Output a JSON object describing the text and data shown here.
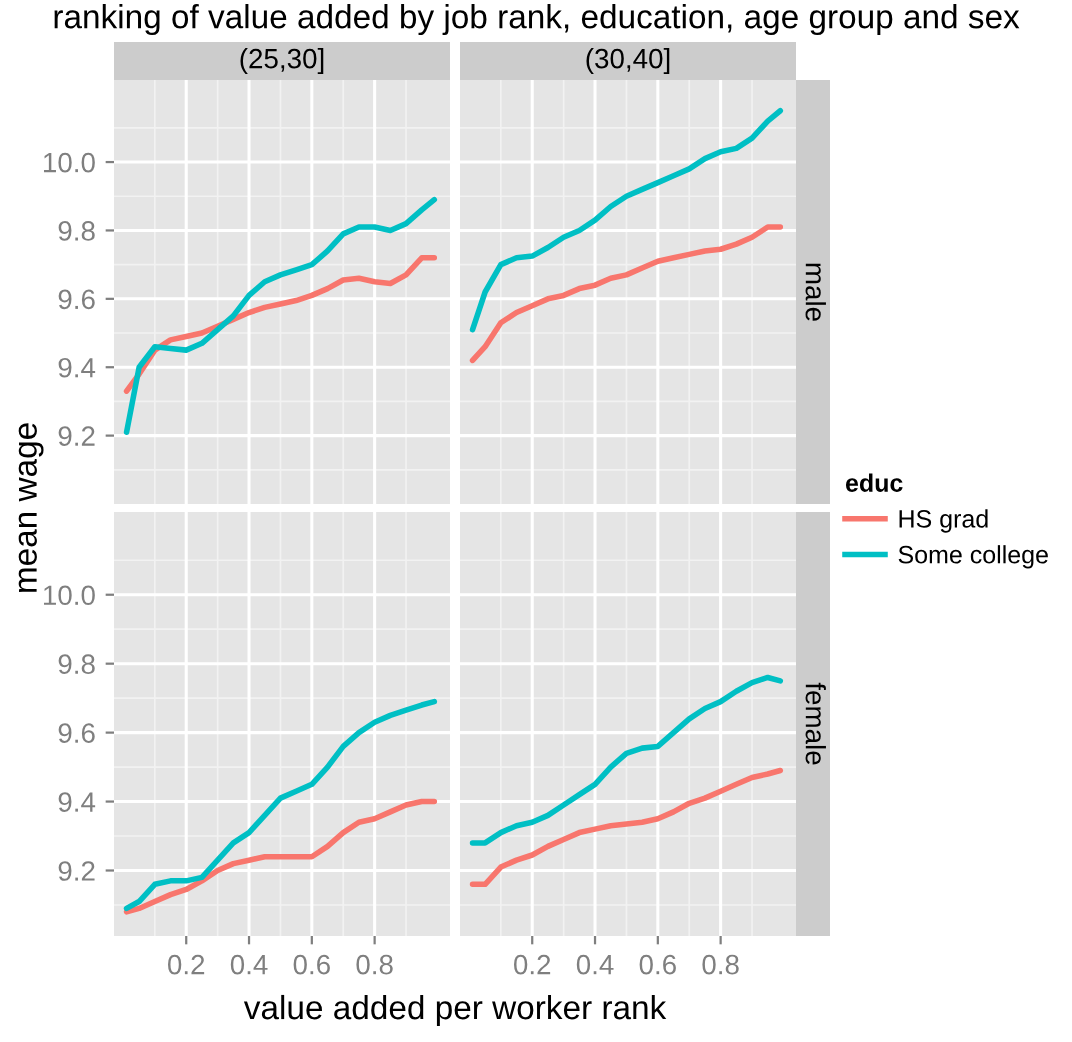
{
  "chart_data": [
    {
      "type": "line",
      "title": "(25,30]",
      "ylabel": "mean wage",
      "annotations": [
        "ranking of value added by job rank, education, age group and sex"
      ],
      "x": [
        0.01,
        0.05,
        0.1,
        0.15,
        0.2,
        0.25,
        0.3,
        0.35,
        0.4,
        0.45,
        0.5,
        0.55,
        0.6,
        0.65,
        0.7,
        0.75,
        0.8,
        0.85,
        0.9,
        0.95,
        0.99
      ],
      "series": [
        {
          "color": "#f8766d",
          "values": [
            9.33,
            9.38,
            9.45,
            9.48,
            9.49,
            9.5,
            9.52,
            9.54,
            9.56,
            9.575,
            9.585,
            9.595,
            9.61,
            9.63,
            9.655,
            9.66,
            9.65,
            9.645,
            9.67,
            9.72,
            9.72
          ]
        },
        {
          "color": "#00bfc4",
          "values": [
            9.21,
            9.4,
            9.46,
            9.455,
            9.45,
            9.47,
            9.51,
            9.55,
            9.61,
            9.65,
            9.67,
            9.685,
            9.7,
            9.74,
            9.79,
            9.81,
            9.81,
            9.8,
            9.82,
            9.86,
            9.89
          ]
        }
      ],
      "xlim": [
        -0.03,
        1.04
      ],
      "ylim": [
        9.0,
        10.24
      ],
      "xticks": [
        0.2,
        0.4,
        0.6,
        0.8
      ],
      "yticks": [
        {
          "value": 9.2,
          "label": "9.2"
        },
        {
          "value": 9.4,
          "label": "9.4"
        },
        {
          "value": 9.6,
          "label": "9.6"
        },
        {
          "value": 9.8,
          "label": "9.8"
        },
        {
          "value": 10.0,
          "label": "10.0"
        }
      ],
      "grid": true,
      "tick_labels": "y"
    },
    {
      "type": "line",
      "title": "(30,40]",
      "y2label": "male",
      "legend": "right",
      "legend_title": "educ",
      "x": [
        0.01,
        0.05,
        0.1,
        0.15,
        0.2,
        0.25,
        0.3,
        0.35,
        0.4,
        0.45,
        0.5,
        0.55,
        0.6,
        0.65,
        0.7,
        0.75,
        0.8,
        0.85,
        0.9,
        0.95,
        0.99
      ],
      "series": [
        {
          "name": "HS grad",
          "color": "#f8766d",
          "values": [
            9.42,
            9.46,
            9.53,
            9.56,
            9.58,
            9.6,
            9.61,
            9.63,
            9.64,
            9.66,
            9.67,
            9.69,
            9.71,
            9.72,
            9.73,
            9.74,
            9.745,
            9.76,
            9.78,
            9.81,
            9.81
          ]
        },
        {
          "name": "Some college",
          "color": "#00bfc4",
          "values": [
            9.51,
            9.62,
            9.7,
            9.72,
            9.725,
            9.75,
            9.78,
            9.8,
            9.83,
            9.87,
            9.9,
            9.92,
            9.94,
            9.96,
            9.98,
            10.01,
            10.03,
            10.04,
            10.07,
            10.12,
            10.15
          ]
        }
      ],
      "xlim": [
        -0.03,
        1.04
      ],
      "ylim": [
        9.0,
        10.24
      ],
      "xticks": [
        0.2,
        0.4,
        0.6,
        0.8
      ],
      "yticks": [
        9.2,
        9.4,
        9.6,
        9.8,
        10.0
      ],
      "grid": true,
      "tick_labels": false
    },
    {
      "type": "line",
      "xlabel": "value added per worker rank",
      "x": [
        0.01,
        0.05,
        0.1,
        0.15,
        0.2,
        0.25,
        0.3,
        0.35,
        0.4,
        0.45,
        0.5,
        0.55,
        0.6,
        0.65,
        0.7,
        0.75,
        0.8,
        0.85,
        0.9,
        0.95,
        0.99
      ],
      "series": [
        {
          "color": "#f8766d",
          "values": [
            9.08,
            9.09,
            9.11,
            9.13,
            9.145,
            9.17,
            9.2,
            9.22,
            9.23,
            9.24,
            9.24,
            9.24,
            9.24,
            9.27,
            9.31,
            9.34,
            9.35,
            9.37,
            9.39,
            9.4,
            9.4
          ]
        },
        {
          "color": "#00bfc4",
          "values": [
            9.09,
            9.11,
            9.16,
            9.17,
            9.17,
            9.18,
            9.23,
            9.28,
            9.31,
            9.36,
            9.41,
            9.43,
            9.45,
            9.5,
            9.56,
            9.6,
            9.63,
            9.65,
            9.665,
            9.68,
            9.69
          ]
        }
      ],
      "xlim": [
        -0.03,
        1.04
      ],
      "ylim": [
        9.01,
        10.24
      ],
      "xticks": [
        0.2,
        0.4,
        0.6,
        0.8
      ],
      "yticks": [
        {
          "value": 9.2,
          "label": "9.2"
        },
        {
          "value": 9.4,
          "label": "9.4"
        },
        {
          "value": 9.6,
          "label": "9.6"
        },
        {
          "value": 9.8,
          "label": "9.8"
        },
        {
          "value": 10.0,
          "label": "10.0"
        }
      ],
      "grid": true
    },
    {
      "type": "line",
      "y2label": "female",
      "x": [
        0.01,
        0.05,
        0.1,
        0.15,
        0.2,
        0.25,
        0.3,
        0.35,
        0.4,
        0.45,
        0.5,
        0.55,
        0.6,
        0.65,
        0.7,
        0.75,
        0.8,
        0.85,
        0.9,
        0.95,
        0.99
      ],
      "series": [
        {
          "color": "#f8766d",
          "values": [
            9.16,
            9.16,
            9.21,
            9.23,
            9.245,
            9.27,
            9.29,
            9.31,
            9.32,
            9.33,
            9.335,
            9.34,
            9.35,
            9.37,
            9.395,
            9.41,
            9.43,
            9.45,
            9.47,
            9.48,
            9.49
          ]
        },
        {
          "color": "#00bfc4",
          "values": [
            9.28,
            9.28,
            9.31,
            9.33,
            9.34,
            9.36,
            9.39,
            9.42,
            9.45,
            9.5,
            9.54,
            9.555,
            9.56,
            9.6,
            9.64,
            9.67,
            9.69,
            9.72,
            9.745,
            9.76,
            9.75
          ]
        }
      ],
      "xlim": [
        -0.03,
        1.04
      ],
      "ylim": [
        9.01,
        10.24
      ],
      "xticks": [
        0.2,
        0.4,
        0.6,
        0.8
      ],
      "yticks": [
        9.2,
        9.4,
        9.6,
        9.8,
        10.0
      ],
      "grid": true,
      "tick_labels": "x"
    }
  ]
}
